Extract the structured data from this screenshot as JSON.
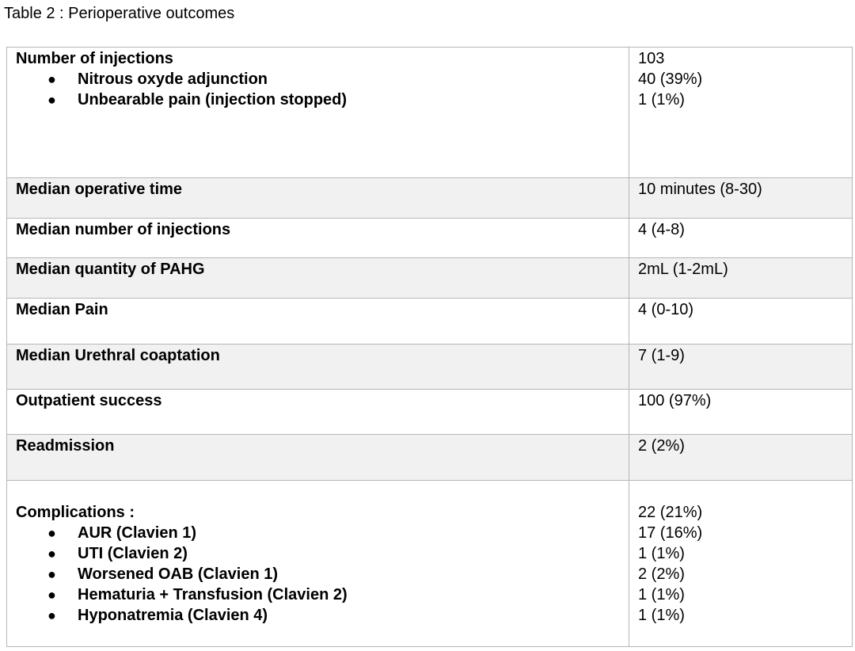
{
  "caption": "Table 2 : Perioperative outcomes",
  "rows": [
    {
      "label": "Number of injections",
      "value": "103",
      "sub": [
        {
          "label": "Nitrous oxyde adjunction",
          "value": "40 (39%)"
        },
        {
          "label": "Unbearable pain (injection stopped)",
          "value": "1 (1%)"
        }
      ]
    },
    {
      "label": "Median operative time",
      "value": "10 minutes (8-30)"
    },
    {
      "label": "Median number of injections",
      "value": "4 (4-8)"
    },
    {
      "label": "Median quantity of PAHG",
      "value": "2mL (1-2mL)"
    },
    {
      "label": "Median Pain",
      "value": "4 (0-10)"
    },
    {
      "label": "Median Urethral coaptation",
      "value": "7 (1-9)"
    },
    {
      "label": "Outpatient success",
      "value": "100 (97%)"
    },
    {
      "label": "Readmission",
      "value": "2 (2%)"
    },
    {
      "label": "Complications :",
      "value": "22 (21%)",
      "sub": [
        {
          "label": "AUR (Clavien 1)",
          "value": "17 (16%)"
        },
        {
          "label": "UTI (Clavien 2)",
          "value": "1 (1%)"
        },
        {
          "label": "Worsened OAB (Clavien 1)",
          "value": "2 (2%)"
        },
        {
          "label": "Hematuria + Transfusion (Clavien 2)",
          "value": "1 (1%)"
        },
        {
          "label": "Hyponatremia (Clavien 4)",
          "value": "1 (1%)"
        }
      ]
    }
  ],
  "colors": {
    "border": "#b5b5b5",
    "shaded_row": "#f1f1f1"
  }
}
